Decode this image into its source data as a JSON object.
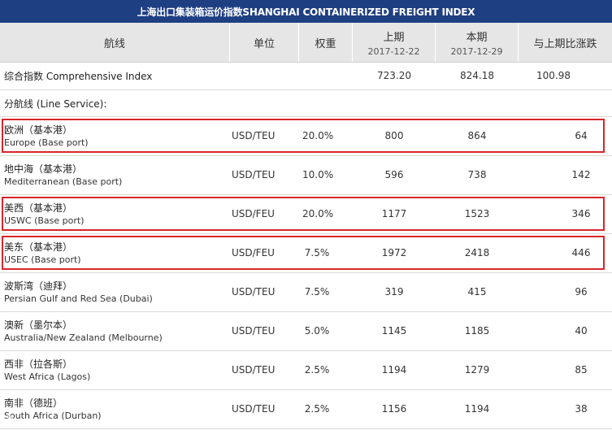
{
  "title": "上海出口集装箱运价指数SHANGHAI CONTAINERIZED FREIGHT INDEX",
  "headers": {
    "route": "航线",
    "unit": "单位",
    "weight": "权重",
    "prev_label": "上期",
    "prev_date": "2017-12-22",
    "curr_label": "本期",
    "curr_date": "2017-12-29",
    "change": "与上期比涨跌"
  },
  "composite": {
    "name": "综合指数 Comprehensive Index",
    "prev": "723.20",
    "curr": "824.18",
    "change": "100.98"
  },
  "section_label": "分航线 (Line Service):",
  "routes": [
    {
      "cn": "欧洲（基本港）",
      "en": "Europe (Base port)",
      "unit": "USD/TEU",
      "weight": "20.0%",
      "prev": "800",
      "curr": "864",
      "change": "64",
      "highlight": true
    },
    {
      "cn": "地中海（基本港）",
      "en": "Mediterranean (Base port)",
      "unit": "USD/TEU",
      "weight": "10.0%",
      "prev": "596",
      "curr": "738",
      "change": "142",
      "highlight": false
    },
    {
      "cn": "美西（基本港）",
      "en": "USWC (Base port)",
      "unit": "USD/FEU",
      "weight": "20.0%",
      "prev": "1177",
      "curr": "1523",
      "change": "346",
      "highlight": true
    },
    {
      "cn": "美东（基本港）",
      "en": "USEC (Base port)",
      "unit": "USD/FEU",
      "weight": "7.5%",
      "prev": "1972",
      "curr": "2418",
      "change": "446",
      "highlight": true
    },
    {
      "cn": "波斯湾（迪拜）",
      "en": "Persian Gulf and Red Sea (Dubai)",
      "unit": "USD/TEU",
      "weight": "7.5%",
      "prev": "319",
      "curr": "415",
      "change": "96",
      "highlight": false
    },
    {
      "cn": "澳新（墨尔本）",
      "en": "Australia/New Zealand (Melbourne)",
      "unit": "USD/TEU",
      "weight": "5.0%",
      "prev": "1145",
      "curr": "1185",
      "change": "40",
      "highlight": false
    },
    {
      "cn": "西非（拉各斯）",
      "en": "West Africa (Lagos)",
      "unit": "USD/TEU",
      "weight": "2.5%",
      "prev": "1194",
      "curr": "1279",
      "change": "85",
      "highlight": false
    },
    {
      "cn": "南非（德班）",
      "en": "South Africa (Durban)",
      "unit": "USD/TEU",
      "weight": "2.5%",
      "prev": "1156",
      "curr": "1194",
      "change": "38",
      "highlight": false
    }
  ],
  "colors": {
    "title_bg": "#1f3f83",
    "header_bg": "#e6e6e6",
    "highlight_border": "#d7262b"
  }
}
